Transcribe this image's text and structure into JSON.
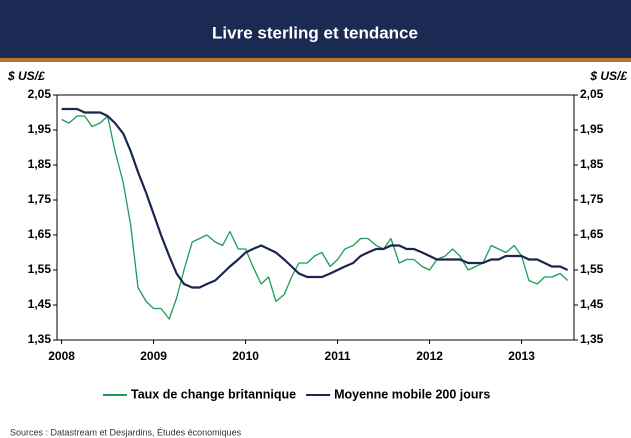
{
  "chart_data": {
    "type": "line",
    "title": "Livre sterling et tendance",
    "y_label": "$ US/£",
    "y2_label": "$ US/£",
    "source": "Sources : Datastream et Desjardins, Études économiques",
    "xlim": [
      2007.95,
      2013.57
    ],
    "xticks": [
      2008,
      2009,
      2010,
      2011,
      2012,
      2013
    ],
    "ylim": [
      1.35,
      2.05
    ],
    "yticks": [
      {
        "value": 1.35,
        "label": "1,35"
      },
      {
        "value": 1.45,
        "label": "1,45"
      },
      {
        "value": 1.55,
        "label": "1,55"
      },
      {
        "value": 1.65,
        "label": "1,65"
      },
      {
        "value": 1.75,
        "label": "1,75"
      },
      {
        "value": 1.85,
        "label": "1,85"
      },
      {
        "value": 1.95,
        "label": "1,95"
      },
      {
        "value": 2.05,
        "label": "2,05"
      }
    ],
    "x": [
      2008.0,
      2008.08,
      2008.17,
      2008.25,
      2008.33,
      2008.42,
      2008.5,
      2008.58,
      2008.67,
      2008.75,
      2008.83,
      2008.92,
      2009.0,
      2009.08,
      2009.17,
      2009.25,
      2009.33,
      2009.42,
      2009.5,
      2009.58,
      2009.67,
      2009.75,
      2009.83,
      2009.92,
      2010.0,
      2010.08,
      2010.17,
      2010.25,
      2010.33,
      2010.42,
      2010.5,
      2010.58,
      2010.67,
      2010.75,
      2010.83,
      2010.92,
      2011.0,
      2011.08,
      2011.17,
      2011.25,
      2011.33,
      2011.42,
      2011.5,
      2011.58,
      2011.67,
      2011.75,
      2011.83,
      2011.92,
      2012.0,
      2012.08,
      2012.17,
      2012.25,
      2012.33,
      2012.42,
      2012.5,
      2012.58,
      2012.67,
      2012.75,
      2012.83,
      2012.92,
      2013.0,
      2013.08,
      2013.17,
      2013.25,
      2013.33,
      2013.42,
      2013.5
    ],
    "series": [
      {
        "name": "Taux de change britannique",
        "color": "#1f9a5a",
        "values": [
          1.98,
          1.97,
          1.99,
          1.99,
          1.96,
          1.97,
          1.99,
          1.89,
          1.8,
          1.68,
          1.5,
          1.46,
          1.44,
          1.44,
          1.41,
          1.47,
          1.55,
          1.63,
          1.64,
          1.65,
          1.63,
          1.62,
          1.66,
          1.61,
          1.61,
          1.56,
          1.51,
          1.53,
          1.46,
          1.48,
          1.53,
          1.57,
          1.57,
          1.59,
          1.6,
          1.56,
          1.58,
          1.61,
          1.62,
          1.64,
          1.64,
          1.62,
          1.61,
          1.64,
          1.57,
          1.58,
          1.58,
          1.56,
          1.55,
          1.58,
          1.59,
          1.61,
          1.59,
          1.55,
          1.56,
          1.57,
          1.62,
          1.61,
          1.6,
          1.62,
          1.59,
          1.52,
          1.51,
          1.53,
          1.53,
          1.54,
          1.52
        ]
      },
      {
        "name": "Moyenne mobile 200 jours",
        "color": "#1a2550",
        "values": [
          2.01,
          2.01,
          2.01,
          2.0,
          2.0,
          2.0,
          1.99,
          1.97,
          1.94,
          1.89,
          1.83,
          1.77,
          1.71,
          1.65,
          1.59,
          1.54,
          1.51,
          1.5,
          1.5,
          1.51,
          1.52,
          1.54,
          1.56,
          1.58,
          1.6,
          1.61,
          1.62,
          1.61,
          1.6,
          1.58,
          1.56,
          1.54,
          1.53,
          1.53,
          1.53,
          1.54,
          1.55,
          1.56,
          1.57,
          1.59,
          1.6,
          1.61,
          1.61,
          1.62,
          1.62,
          1.61,
          1.61,
          1.6,
          1.59,
          1.58,
          1.58,
          1.58,
          1.58,
          1.57,
          1.57,
          1.57,
          1.58,
          1.58,
          1.59,
          1.59,
          1.59,
          1.58,
          1.58,
          1.57,
          1.56,
          1.56,
          1.55
        ]
      }
    ]
  }
}
